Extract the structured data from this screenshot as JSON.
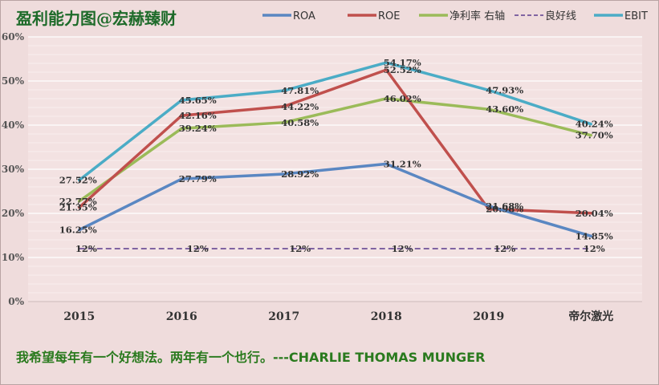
{
  "chart_data": {
    "type": "line",
    "title": "盈利能力图@宏赫臻财",
    "categories": [
      "2015",
      "2016",
      "2017",
      "2018",
      "2019",
      "帝尔激光"
    ],
    "ylim": [
      0,
      60
    ],
    "yticks": [
      "0%",
      "10%",
      "20%",
      "30%",
      "40%",
      "50%",
      "60%"
    ],
    "grid": true,
    "legend_position": "top",
    "series": [
      {
        "name": "ROA",
        "color": "#5a87c2",
        "dash": false,
        "values": [
          16.25,
          27.79,
          28.92,
          31.21,
          21.68,
          14.85
        ],
        "labels": [
          "16.25%",
          "27.79%",
          "28.92%",
          "31.21%",
          "21.68%",
          "14.85%"
        ]
      },
      {
        "name": "ROE",
        "color": "#c0504d",
        "dash": false,
        "values": [
          21.35,
          42.16,
          44.22,
          52.52,
          20.98,
          20.04
        ],
        "labels": [
          "21.35%",
          "42.16%",
          "44.22%",
          "52.52%",
          "20.98%",
          "20.04%"
        ]
      },
      {
        "name": "净利率 右轴",
        "color": "#9bbb59",
        "dash": false,
        "values": [
          22.77,
          39.24,
          40.58,
          46.02,
          43.6,
          37.7
        ],
        "labels": [
          "22.77%",
          "39.24%",
          "40.58%",
          "46.02%",
          "43.60%",
          "37.70%"
        ]
      },
      {
        "name": "良好线",
        "color": "#8064a2",
        "dash": true,
        "values": [
          12,
          12,
          12,
          12,
          12,
          12
        ],
        "labels": [
          "12%",
          "12%",
          "12%",
          "12%",
          "12%",
          "12%"
        ]
      },
      {
        "name": "EBIT",
        "color": "#4bacc6",
        "dash": false,
        "values": [
          27.52,
          45.65,
          47.81,
          54.17,
          47.93,
          40.24
        ],
        "labels": [
          "27.52%",
          "45.65%",
          "47.81%",
          "54.17%",
          "47.93%",
          "40.24%"
        ]
      }
    ]
  },
  "quote": "我希望每年有一个好想法。两年有一个也行。---CHARLIE THOMAS MUNGER"
}
